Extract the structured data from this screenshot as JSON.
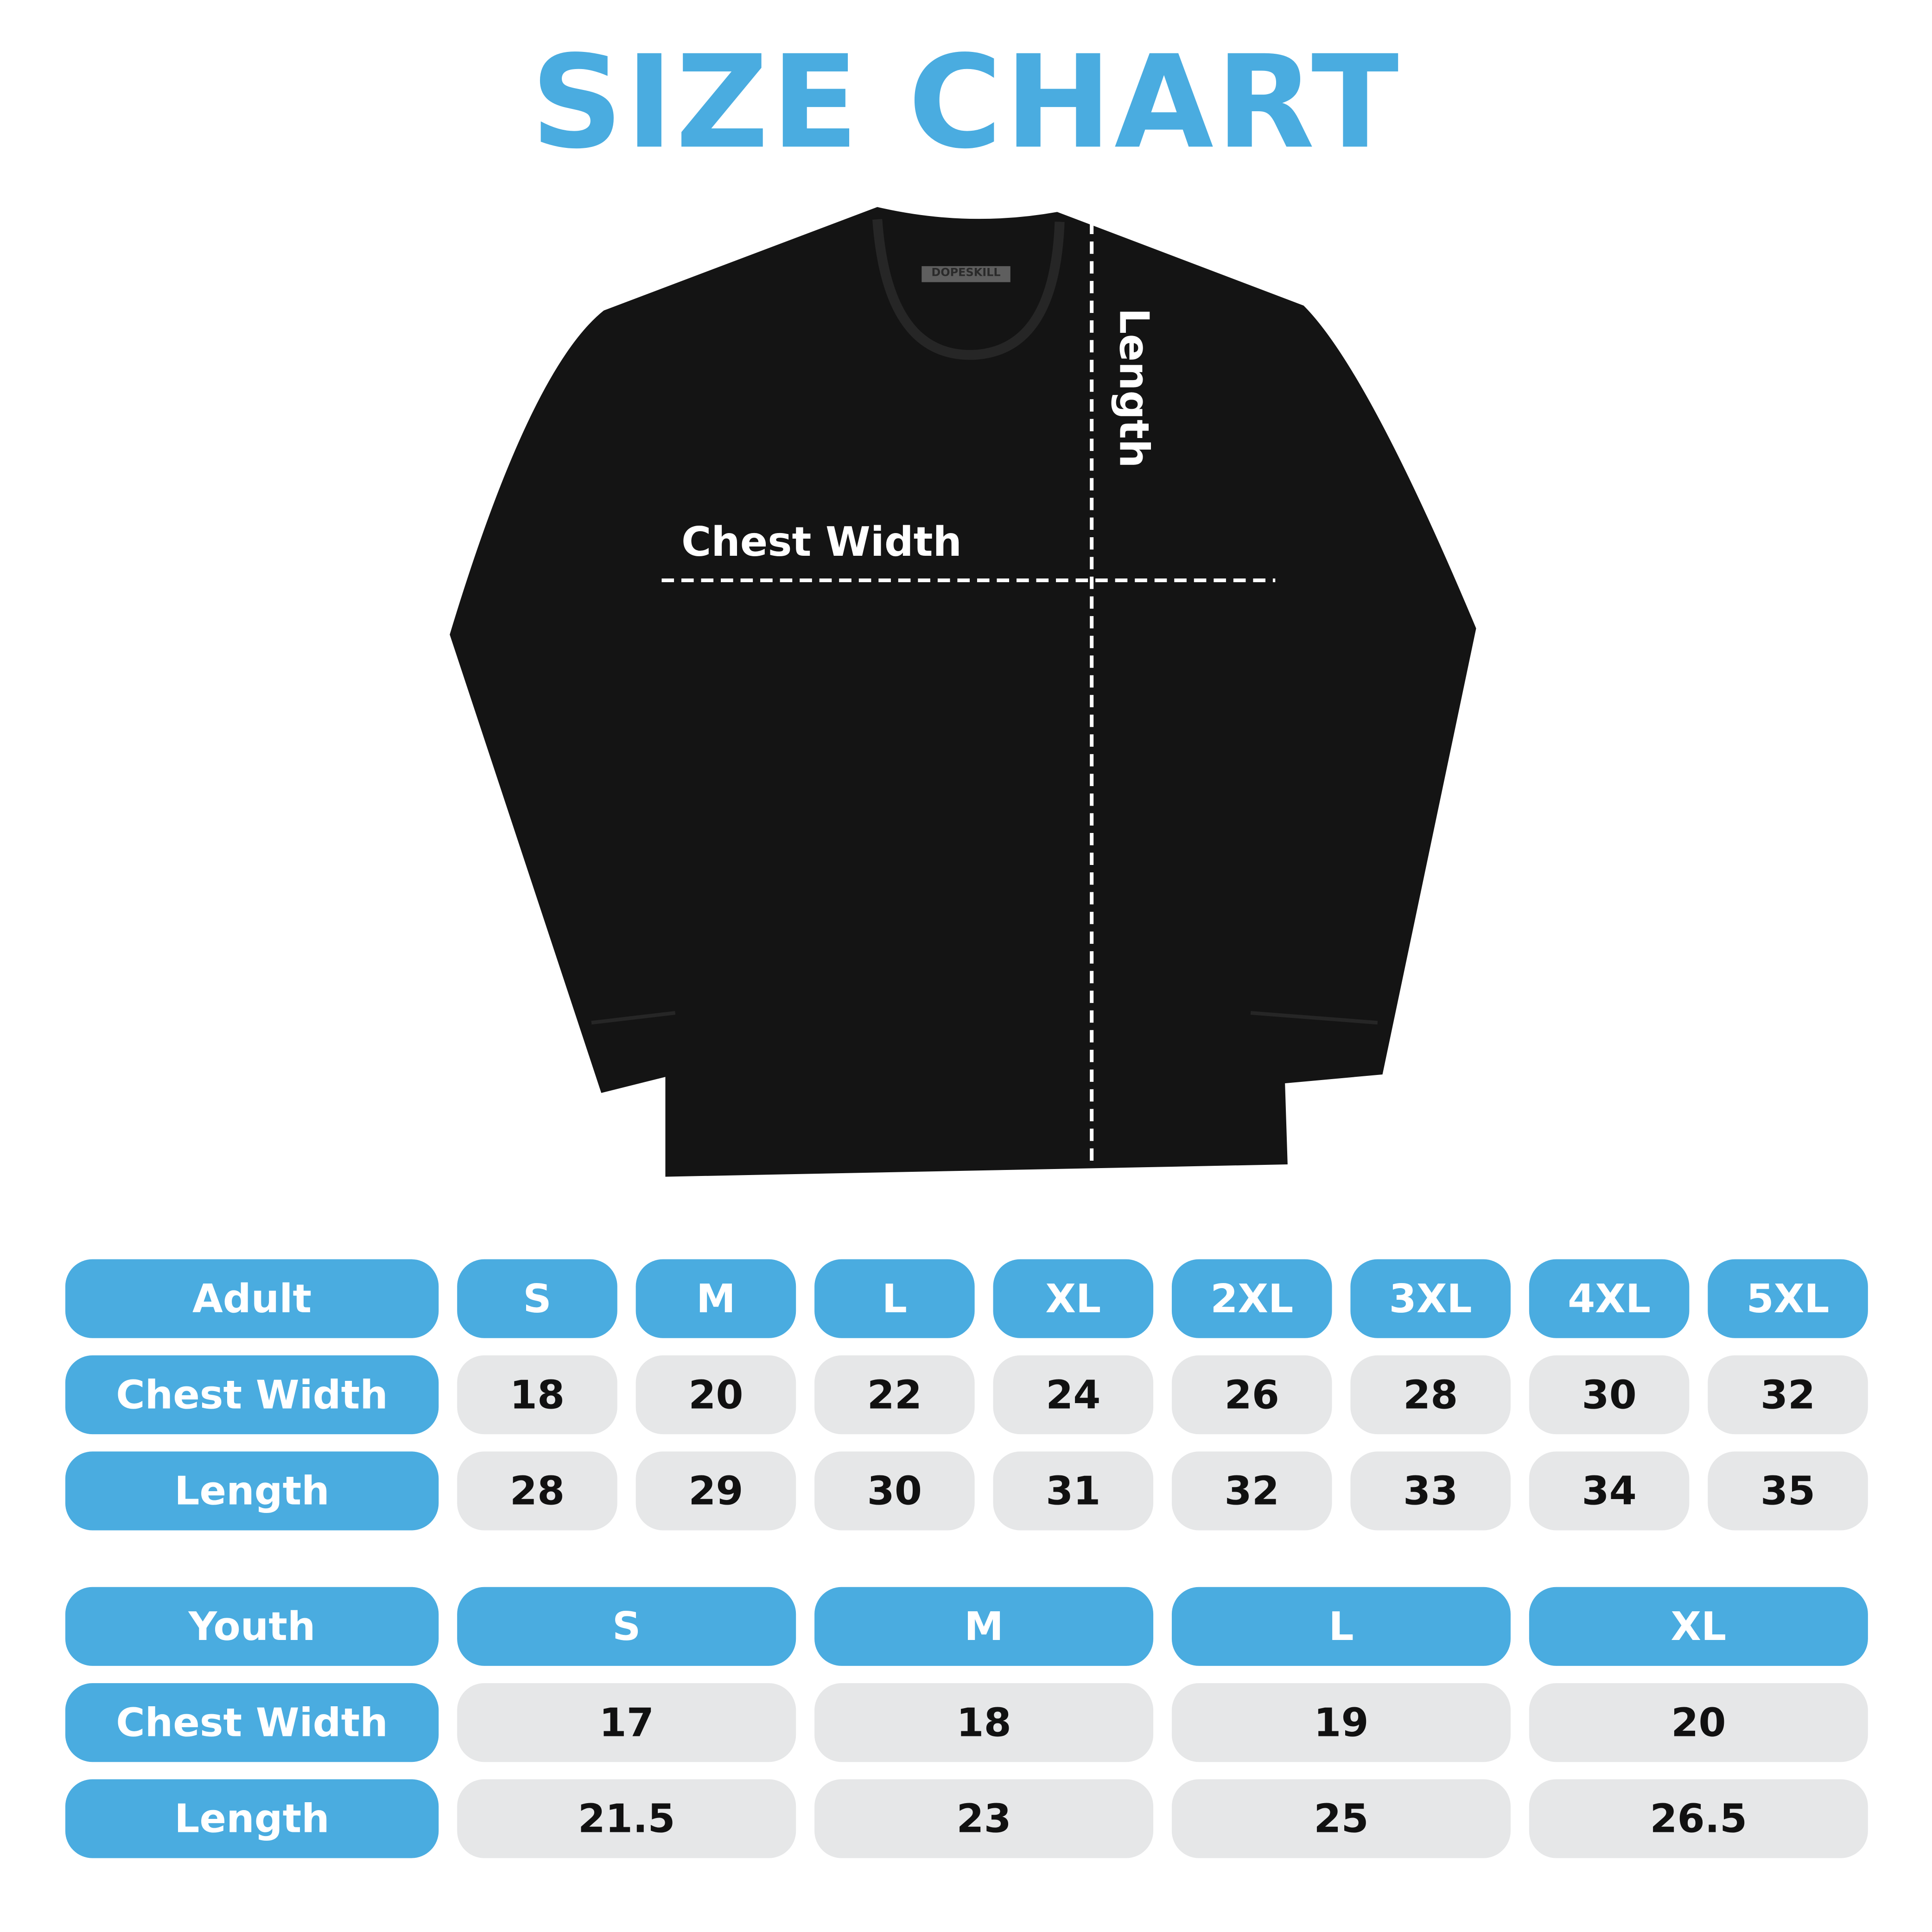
{
  "title": "SIZE CHART",
  "brand_logo": "DOPESKILL",
  "diagram": {
    "chest_label": "Chest Width",
    "length_label": "Length"
  },
  "colors": {
    "accent": "#4AACE0",
    "cell_bg": "#E6E7E8",
    "shirt": "#141414"
  },
  "adult": {
    "header": "Adult",
    "sizes": [
      "S",
      "M",
      "L",
      "XL",
      "2XL",
      "3XL",
      "4XL",
      "5XL"
    ],
    "rows": [
      {
        "label": "Chest Width",
        "values": [
          "18",
          "20",
          "22",
          "24",
          "26",
          "28",
          "30",
          "32"
        ]
      },
      {
        "label": "Length",
        "values": [
          "28",
          "29",
          "30",
          "31",
          "32",
          "33",
          "34",
          "35"
        ]
      }
    ]
  },
  "youth": {
    "header": "Youth",
    "sizes": [
      "S",
      "M",
      "L",
      "XL"
    ],
    "rows": [
      {
        "label": "Chest Width",
        "values": [
          "17",
          "18",
          "19",
          "20"
        ]
      },
      {
        "label": "Length",
        "values": [
          "21.5",
          "23",
          "25",
          "26.5"
        ]
      }
    ]
  }
}
